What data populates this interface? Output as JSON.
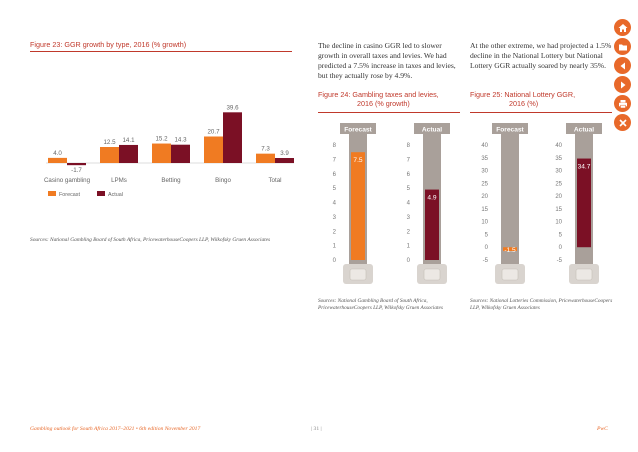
{
  "fig23": {
    "title": "Figure 23:  GGR growth by type, 2016 (% growth)",
    "source": "Sources: National Gambling Board of South Africa, PricewaterhouseCoopers LLP, Wilkofsky Gruen Associates",
    "legend": {
      "forecast": "Forecast",
      "actual": "Actual"
    },
    "colors": {
      "forecast": "#f07b22",
      "actual": "#7b1025"
    },
    "chart_data": {
      "type": "bar",
      "categories": [
        "Casino gambling",
        "LPMs",
        "Betting",
        "Bingo",
        "Total"
      ],
      "series": [
        {
          "name": "Forecast",
          "values": [
            4.0,
            12.5,
            15.2,
            20.7,
            7.3
          ],
          "labels": [
            "4.0",
            "12.5",
            "15.2",
            "20.7",
            "7.3"
          ]
        },
        {
          "name": "Actual",
          "values": [
            -1.7,
            14.1,
            14.3,
            39.6,
            3.9
          ],
          "labels": [
            "-1.7",
            "14.1",
            "14.3",
            "39.6",
            "3.9"
          ]
        }
      ],
      "title": "GGR growth by type, 2016 (% growth)"
    }
  },
  "intro_left": "The decline in casino GGR led to slower growth in overall taxes and levies. We had predicted a 7.5% increase in taxes and levies, but they actually rose by 4.9%.",
  "intro_right": "At the other extreme, we had projected a 1.5% decline in the National Lottery but National Lottery GGR actually soared by nearly 35%.",
  "fig24": {
    "title_line1": "Figure 24:  Gambling taxes and levies,",
    "title_line2": "2016 (% growth)",
    "source": "Sources: National Gambling Board of South Africa, PricewaterhouseCoopers LLP, Wilkofsky Gruen Associates",
    "chart_data": {
      "type": "bar",
      "categories": [
        "Forecast",
        "Actual"
      ],
      "values": [
        7.5,
        4.9
      ],
      "labels": [
        "7.5",
        "4.9"
      ],
      "ylim": [
        0,
        8
      ],
      "ticks": [
        "8",
        "7",
        "6",
        "5",
        "4",
        "3",
        "2",
        "1",
        "0"
      ]
    }
  },
  "fig25": {
    "title_line1": "Figure 25:  National Lottery GGR,",
    "title_line2": "2016 (%)",
    "source": "Sources: National Lotteries Commission, PricewaterhouseCoopers LLP, Wilkofsky Gruen Associates",
    "chart_data": {
      "type": "bar",
      "categories": [
        "Forecast",
        "Actual"
      ],
      "values": [
        -1.5,
        34.7
      ],
      "labels": [
        "-1.5",
        "34.7"
      ],
      "ylim": [
        -5,
        40
      ],
      "ticks": [
        "40",
        "35",
        "30",
        "25",
        "20",
        "15",
        "10",
        "5",
        "0",
        "-5"
      ]
    }
  },
  "footer": {
    "left": "Gambling outlook for South Africa 2017–2021  •  6th edition  November 2017",
    "page": "| 31 |",
    "right": "PwC"
  },
  "nav": {
    "home": "home-icon",
    "folder": "folder-icon",
    "prev": "prev-icon",
    "next": "next-icon",
    "print": "print-icon",
    "close": "close-icon"
  }
}
